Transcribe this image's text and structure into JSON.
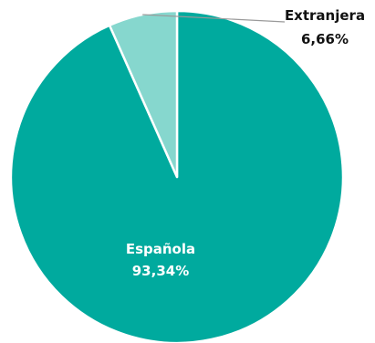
{
  "chart_data": {
    "type": "pie",
    "categories": [
      "Española",
      "Extranjera"
    ],
    "values": [
      93.34,
      6.66
    ],
    "colors": [
      "#00AA9E",
      "#86D7CE"
    ],
    "slice_labels": [
      {
        "name": "Española",
        "percent": "93,34%"
      },
      {
        "name": "Extranjera",
        "percent": "6,66%"
      }
    ],
    "start": "top, clockwise",
    "title": ""
  }
}
